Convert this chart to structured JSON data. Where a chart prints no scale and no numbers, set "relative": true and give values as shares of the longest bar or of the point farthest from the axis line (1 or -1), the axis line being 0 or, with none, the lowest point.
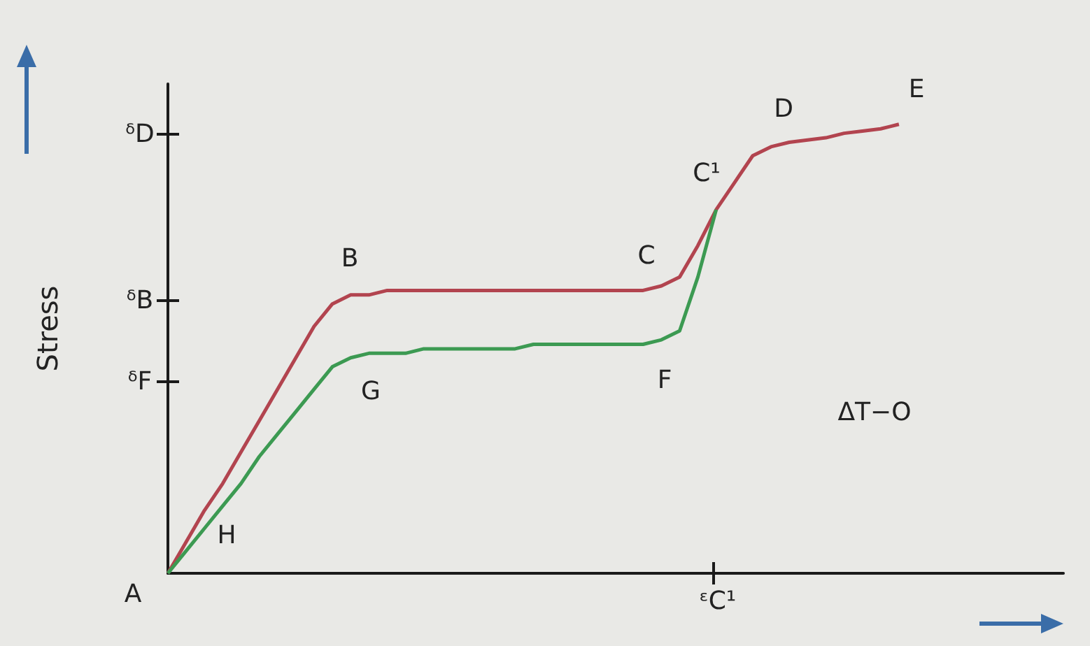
{
  "chart_data": {
    "type": "line",
    "ylabel": "Stress",
    "categories": [
      null,
      null,
      null,
      null,
      null,
      null,
      null,
      null,
      null,
      null,
      null,
      null,
      null,
      null,
      null,
      null,
      null,
      null,
      null,
      null,
      null,
      null,
      null,
      null,
      null,
      null,
      null,
      null,
      null,
      null,
      null,
      null,
      null,
      null,
      null,
      null,
      null,
      null,
      null,
      null,
      null,
      null,
      null,
      null,
      null,
      null,
      null,
      null,
      null,
      null
    ],
    "relative": true,
    "series": [
      {
        "color": "#b2444f",
        "values": [
          0,
          0.07,
          0.14,
          0.2,
          0.27,
          0.34,
          0.41,
          0.48,
          0.55,
          0.6,
          0.62,
          0.62,
          0.63,
          0.63,
          0.63,
          0.63,
          0.63,
          0.63,
          0.63,
          0.63,
          0.63,
          0.63,
          0.63,
          0.63,
          0.63,
          0.63,
          0.63,
          0.64,
          0.66,
          0.73,
          0.81,
          0.87,
          0.93,
          0.95,
          0.96,
          0.965,
          0.97,
          0.98,
          0.985,
          0.99,
          1.0,
          null,
          null,
          null,
          null,
          null,
          null,
          null,
          null,
          null
        ]
      },
      {
        "color": "#3c9a52",
        "values": [
          0,
          0.05,
          0.1,
          0.15,
          0.2,
          0.26,
          0.31,
          0.36,
          0.41,
          0.46,
          0.48,
          0.49,
          0.49,
          0.49,
          0.5,
          0.5,
          0.5,
          0.5,
          0.5,
          0.5,
          0.51,
          0.51,
          0.51,
          0.51,
          0.51,
          0.51,
          0.51,
          0.52,
          0.54,
          0.66,
          0.81,
          null,
          null,
          null,
          null,
          null,
          null,
          null,
          null,
          null,
          null,
          null,
          null,
          null,
          null,
          null,
          null,
          null,
          null,
          null
        ]
      }
    ],
    "annotations": [
      "ᵟD",
      "ᵟB",
      "ᵟF",
      "ᵋC¹",
      "A",
      "B",
      "C",
      "C¹",
      "D",
      "E",
      "F",
      "G",
      "H",
      "ΔT−O"
    ],
    "grid": false,
    "marker": "none",
    "line_style": "solid"
  }
}
